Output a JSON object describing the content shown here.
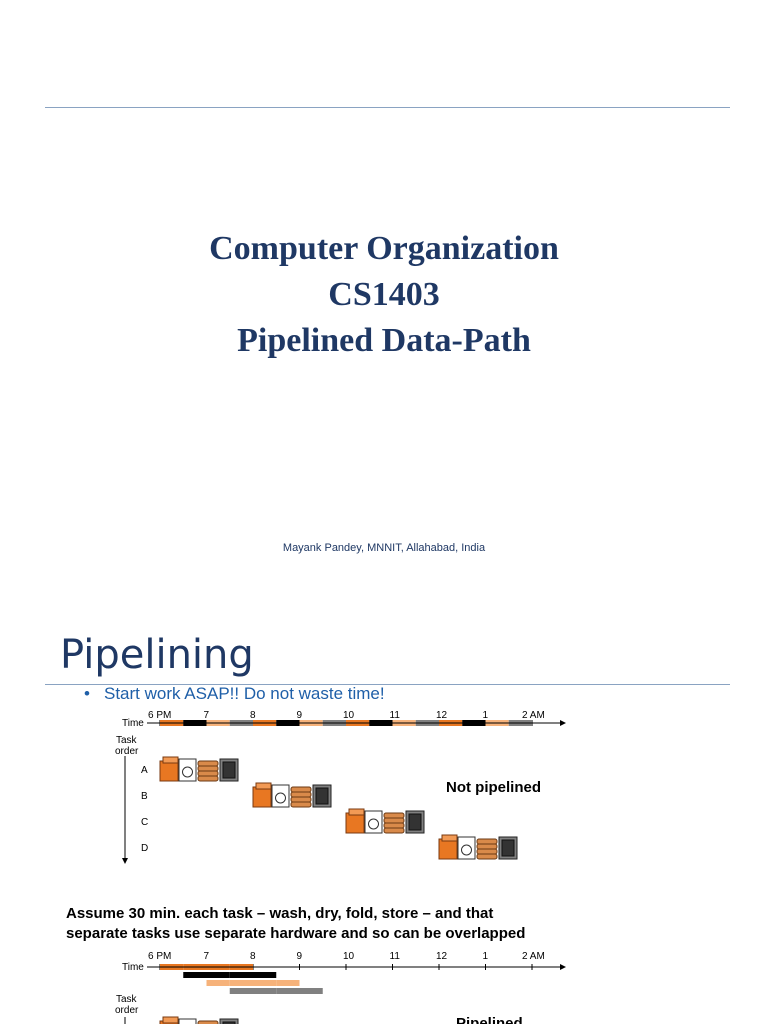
{
  "slide1": {
    "title_lines": [
      "Computer Organization",
      "CS1403",
      "Pipelined Data-Path"
    ],
    "author": "Mayank Pandey, MNNIT, Allahabad, India"
  },
  "slide2": {
    "title": "Pipelining",
    "bullet": "Start work ASAP!! Do not waste time!",
    "timeline": {
      "time_label": "Time",
      "hours": [
        "6 PM",
        "7",
        "8",
        "9",
        "10",
        "11",
        "12",
        "1",
        "2 AM"
      ],
      "task_order_label": [
        "Task",
        "order"
      ],
      "tasks": [
        "A",
        "B",
        "C",
        "D"
      ],
      "not_pipelined_label": "Not pipelined",
      "pipelined_label": "Pipelined",
      "stage_colors": {
        "wash": "#e87722",
        "dry": "#000000",
        "fold": "#f6b27a",
        "store": "#808080"
      },
      "stages": [
        "wash",
        "dry",
        "fold",
        "store"
      ],
      "icons": [
        "washer-icon",
        "dryer-icon",
        "folded-clothes-icon",
        "closet-icon"
      ]
    },
    "assume_text": [
      "Assume 30 min. each task – wash, dry, fold, store – and  that",
      "separate tasks use separate hardware and so can be overlapped"
    ]
  }
}
